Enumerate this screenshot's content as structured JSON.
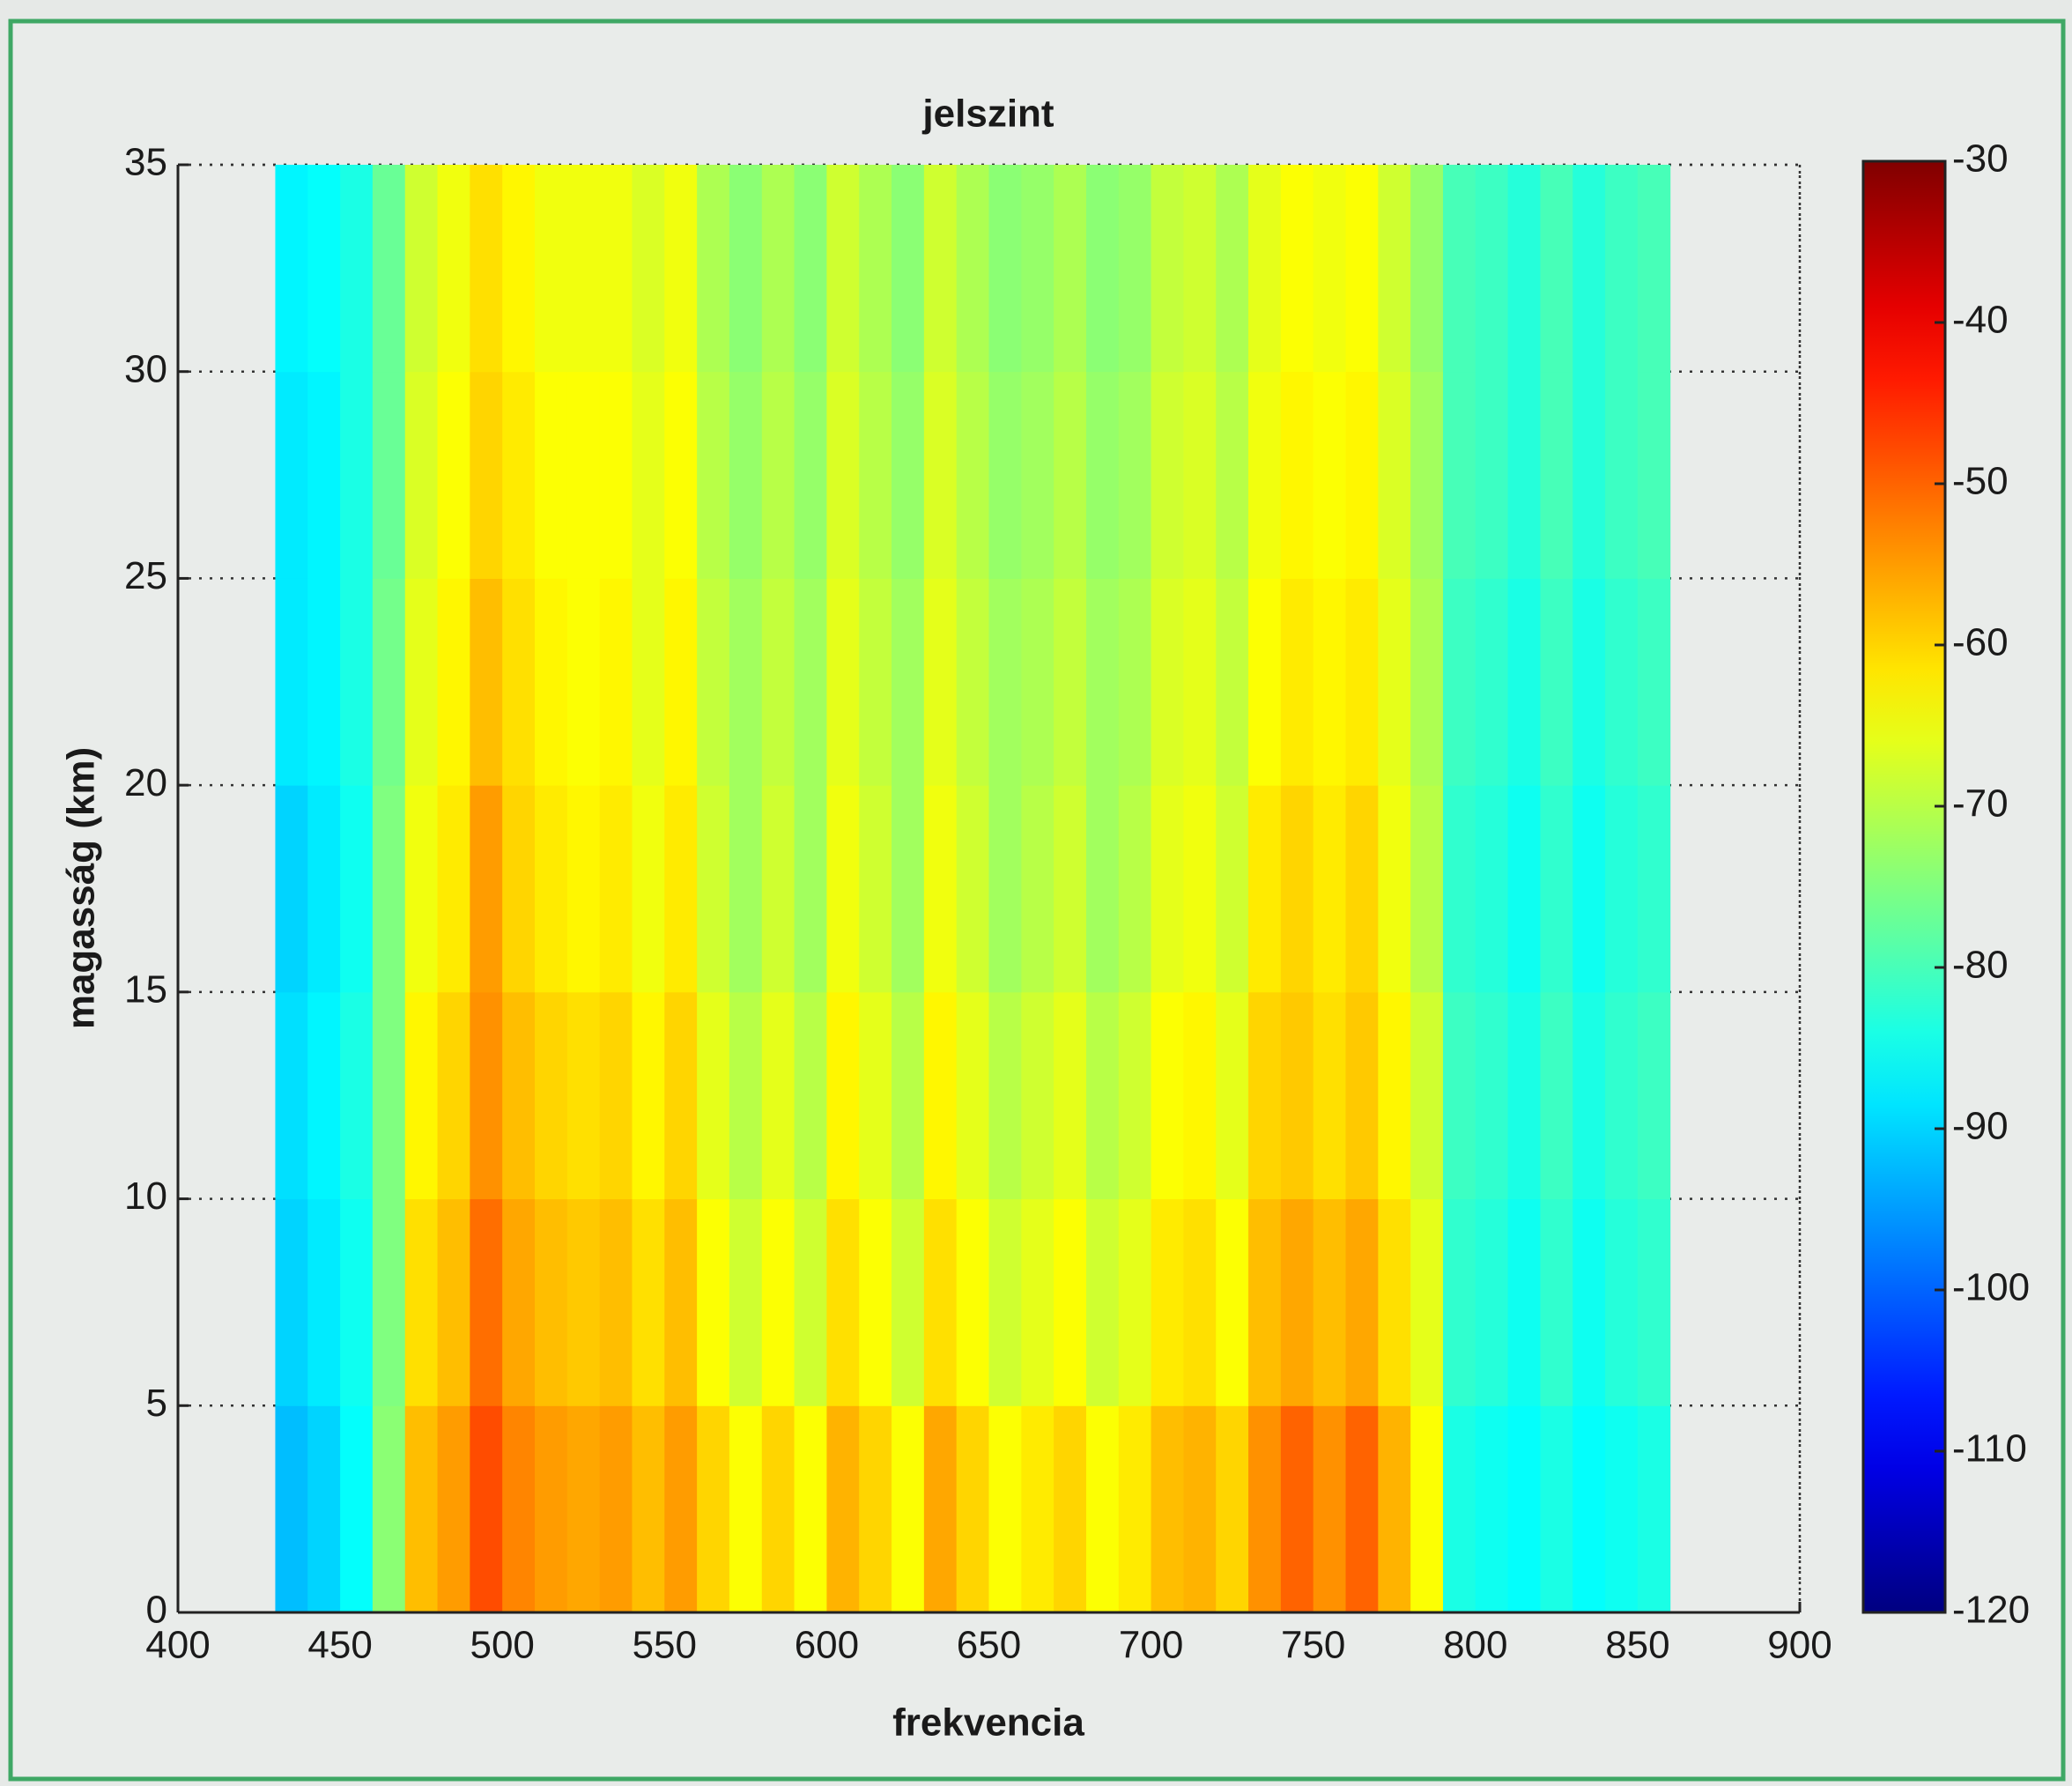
{
  "chart_data": {
    "type": "heatmap",
    "title": "jelszint",
    "x_label": "frekvencia",
    "y_label": "magasság (km)",
    "colormap": "jet",
    "grid": true,
    "x": [
      435,
      445,
      455,
      465,
      475,
      485,
      495,
      505,
      515,
      525,
      535,
      545,
      555,
      565,
      575,
      585,
      595,
      605,
      615,
      625,
      635,
      645,
      655,
      665,
      675,
      685,
      695,
      705,
      715,
      725,
      735,
      745,
      755,
      765,
      775,
      785,
      795,
      805,
      815,
      825,
      835,
      845,
      855
    ],
    "y": [
      2.5,
      7.5,
      12.5,
      17.5,
      22.5,
      27.5,
      32.5
    ],
    "values": [
      [
        -92,
        -90,
        -86,
        -74,
        -58,
        -55,
        -48,
        -53,
        -55,
        -56,
        -55,
        -58,
        -55,
        -60,
        -64,
        -60,
        -64,
        -57,
        -60,
        -64,
        -56,
        -60,
        -64,
        -62,
        -60,
        -64,
        -62,
        -58,
        -57,
        -60,
        -54,
        -50,
        -54,
        -50,
        -57,
        -64,
        -84,
        -85,
        -86,
        -84,
        -86,
        -85,
        -84
      ],
      [
        -90,
        -88,
        -85,
        -75,
        -61,
        -58,
        -51,
        -56,
        -58,
        -59,
        -58,
        -61,
        -58,
        -64,
        -68,
        -64,
        -68,
        -61,
        -64,
        -68,
        -61,
        -64,
        -68,
        -66,
        -64,
        -68,
        -66,
        -62,
        -61,
        -64,
        -58,
        -56,
        -58,
        -56,
        -61,
        -66,
        -82,
        -83,
        -85,
        -82,
        -85,
        -83,
        -82
      ],
      [
        -89,
        -87,
        -84,
        -75,
        -63,
        -60,
        -54,
        -58,
        -60,
        -61,
        -60,
        -63,
        -60,
        -66,
        -70,
        -66,
        -70,
        -63,
        -66,
        -70,
        -63,
        -66,
        -70,
        -68,
        -66,
        -70,
        -68,
        -64,
        -63,
        -66,
        -60,
        -59,
        -61,
        -59,
        -63,
        -68,
        -81,
        -82,
        -84,
        -81,
        -84,
        -82,
        -81
      ],
      [
        -90,
        -88,
        -85,
        -75,
        -65,
        -62,
        -55,
        -60,
        -62,
        -63,
        -62,
        -65,
        -62,
        -68,
        -72,
        -68,
        -72,
        -65,
        -68,
        -72,
        -65,
        -68,
        -72,
        -70,
        -68,
        -72,
        -70,
        -66,
        -65,
        -68,
        -62,
        -60,
        -62,
        -60,
        -65,
        -70,
        -82,
        -83,
        -85,
        -82,
        -85,
        -83,
        -82
      ],
      [
        -88,
        -87,
        -84,
        -76,
        -66,
        -63,
        -58,
        -61,
        -63,
        -64,
        -63,
        -66,
        -63,
        -69,
        -72,
        -69,
        -72,
        -66,
        -69,
        -72,
        -66,
        -69,
        -72,
        -71,
        -69,
        -72,
        -71,
        -67,
        -66,
        -69,
        -64,
        -62,
        -63,
        -62,
        -66,
        -71,
        -81,
        -82,
        -84,
        -81,
        -84,
        -82,
        -81
      ],
      [
        -88,
        -87,
        -84,
        -77,
        -67,
        -64,
        -60,
        -62,
        -64,
        -64,
        -64,
        -66,
        -64,
        -70,
        -73,
        -70,
        -73,
        -67,
        -70,
        -73,
        -67,
        -70,
        -73,
        -72,
        -70,
        -73,
        -72,
        -68,
        -67,
        -70,
        -65,
        -63,
        -64,
        -63,
        -67,
        -72,
        -80,
        -81,
        -83,
        -80,
        -83,
        -81,
        -80
      ],
      [
        -87,
        -86,
        -84,
        -77,
        -68,
        -65,
        -61,
        -63,
        -65,
        -65,
        -65,
        -67,
        -65,
        -71,
        -74,
        -71,
        -74,
        -68,
        -71,
        -74,
        -68,
        -71,
        -74,
        -73,
        -71,
        -74,
        -73,
        -69,
        -68,
        -71,
        -66,
        -64,
        -65,
        -64,
        -68,
        -73,
        -80,
        -81,
        -83,
        -80,
        -83,
        -81,
        -80
      ]
    ],
    "xlim": [
      400,
      900
    ],
    "xticks": [
      400,
      450,
      500,
      550,
      600,
      650,
      700,
      750,
      800,
      850,
      900
    ],
    "ylim": [
      0,
      35
    ],
    "yticks": [
      0,
      5,
      10,
      15,
      20,
      25,
      30,
      35
    ],
    "zlim": [
      -120,
      -30
    ],
    "zticks": [
      -120,
      -110,
      -100,
      -90,
      -80,
      -70,
      -60,
      -50,
      -40,
      -30
    ]
  }
}
